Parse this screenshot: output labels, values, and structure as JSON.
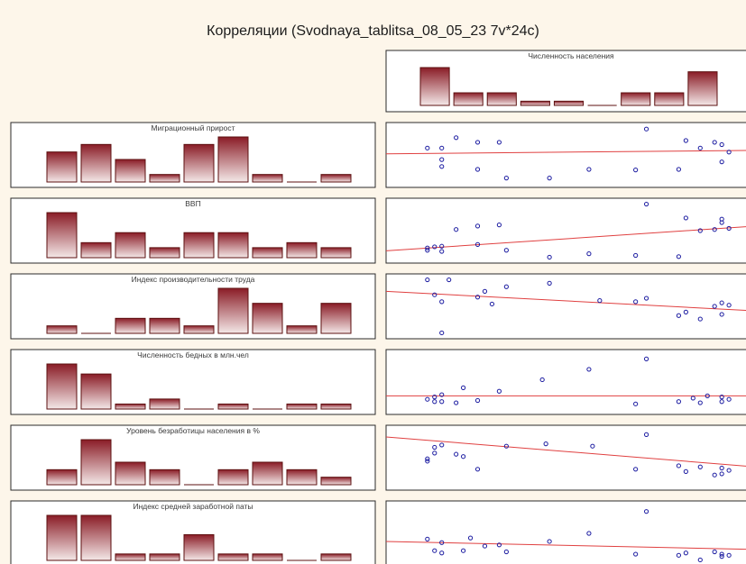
{
  "title": "Корреляции (Svodnaya_tablitsa_08_05_23 7v*24c)",
  "colors": {
    "background": "#fdf6ea",
    "bar_dark": "#8a1c26",
    "bar_light": "#f4e8e8",
    "point": "#1a1aa0",
    "fit_line": "#e04040"
  },
  "chart_data": {
    "type": "correlation-matrix",
    "column_variable": {
      "name": "Численность населения",
      "histogram": [
        9,
        3,
        3,
        1,
        1,
        0,
        3,
        3,
        8
      ]
    },
    "row_variables": [
      {
        "name": "Миграционный прирост",
        "histogram": [
          4,
          5,
          3,
          1,
          5,
          6,
          1,
          0,
          1
        ],
        "points": [
          [
            0.1,
            0.62
          ],
          [
            0.14,
            0.62
          ],
          [
            0.14,
            0.42
          ],
          [
            0.14,
            0.3
          ],
          [
            0.18,
            0.8
          ],
          [
            0.24,
            0.25
          ],
          [
            0.24,
            0.72
          ],
          [
            0.3,
            0.72
          ],
          [
            0.32,
            0.1
          ],
          [
            0.44,
            0.1
          ],
          [
            0.55,
            0.25
          ],
          [
            0.68,
            0.24
          ],
          [
            0.71,
            0.95
          ],
          [
            0.8,
            0.25
          ],
          [
            0.82,
            0.75
          ],
          [
            0.86,
            0.62
          ],
          [
            0.9,
            0.72
          ],
          [
            0.92,
            0.68
          ],
          [
            0.92,
            0.38
          ],
          [
            0.94,
            0.55
          ]
        ],
        "fit": [
          0.52,
          0.58
        ]
      },
      {
        "name": "ВВП",
        "histogram": [
          9,
          3,
          5,
          2,
          5,
          5,
          2,
          3,
          2
        ],
        "points": [
          [
            0.1,
            0.16
          ],
          [
            0.1,
            0.2
          ],
          [
            0.12,
            0.22
          ],
          [
            0.14,
            0.23
          ],
          [
            0.14,
            0.14
          ],
          [
            0.18,
            0.52
          ],
          [
            0.24,
            0.26
          ],
          [
            0.24,
            0.58
          ],
          [
            0.3,
            0.6
          ],
          [
            0.32,
            0.16
          ],
          [
            0.44,
            0.04
          ],
          [
            0.55,
            0.1
          ],
          [
            0.68,
            0.07
          ],
          [
            0.71,
            0.96
          ],
          [
            0.8,
            0.05
          ],
          [
            0.82,
            0.72
          ],
          [
            0.86,
            0.5
          ],
          [
            0.9,
            0.52
          ],
          [
            0.92,
            0.7
          ],
          [
            0.92,
            0.64
          ],
          [
            0.94,
            0.54
          ]
        ],
        "fit": [
          0.15,
          0.58
        ]
      },
      {
        "name": "Индекс производительности труда",
        "histogram": [
          1,
          0,
          2,
          2,
          1,
          6,
          4,
          1,
          4
        ],
        "points": [
          [
            0.1,
            0.96
          ],
          [
            0.12,
            0.7
          ],
          [
            0.14,
            0.58
          ],
          [
            0.14,
            0.04
          ],
          [
            0.16,
            0.96
          ],
          [
            0.24,
            0.66
          ],
          [
            0.26,
            0.76
          ],
          [
            0.28,
            0.54
          ],
          [
            0.32,
            0.84
          ],
          [
            0.44,
            0.9
          ],
          [
            0.58,
            0.6
          ],
          [
            0.68,
            0.58
          ],
          [
            0.71,
            0.64
          ],
          [
            0.8,
            0.34
          ],
          [
            0.82,
            0.4
          ],
          [
            0.86,
            0.28
          ],
          [
            0.9,
            0.5
          ],
          [
            0.92,
            0.56
          ],
          [
            0.92,
            0.36
          ],
          [
            0.94,
            0.52
          ]
        ],
        "fit": [
          0.76,
          0.42
        ]
      },
      {
        "name": "Численность бедных в млн.чел",
        "histogram": [
          9,
          7,
          1,
          2,
          0,
          1,
          0,
          1,
          1
        ],
        "points": [
          [
            0.1,
            0.2
          ],
          [
            0.12,
            0.16
          ],
          [
            0.12,
            0.24
          ],
          [
            0.14,
            0.28
          ],
          [
            0.14,
            0.16
          ],
          [
            0.18,
            0.14
          ],
          [
            0.2,
            0.4
          ],
          [
            0.24,
            0.18
          ],
          [
            0.3,
            0.34
          ],
          [
            0.42,
            0.54
          ],
          [
            0.55,
            0.72
          ],
          [
            0.68,
            0.12
          ],
          [
            0.71,
            0.9
          ],
          [
            0.8,
            0.16
          ],
          [
            0.84,
            0.22
          ],
          [
            0.86,
            0.14
          ],
          [
            0.88,
            0.26
          ],
          [
            0.92,
            0.16
          ],
          [
            0.92,
            0.24
          ],
          [
            0.94,
            0.2
          ]
        ],
        "fit": [
          0.26,
          0.26
        ]
      },
      {
        "name": "Уровень безработицы населения в %",
        "histogram": [
          2,
          6,
          3,
          2,
          0,
          2,
          3,
          2,
          1
        ],
        "points": [
          [
            0.1,
            0.48
          ],
          [
            0.1,
            0.44
          ],
          [
            0.12,
            0.68
          ],
          [
            0.12,
            0.58
          ],
          [
            0.14,
            0.72
          ],
          [
            0.18,
            0.56
          ],
          [
            0.2,
            0.52
          ],
          [
            0.24,
            0.3
          ],
          [
            0.32,
            0.7
          ],
          [
            0.43,
            0.74
          ],
          [
            0.56,
            0.7
          ],
          [
            0.68,
            0.3
          ],
          [
            0.71,
            0.9
          ],
          [
            0.8,
            0.36
          ],
          [
            0.82,
            0.26
          ],
          [
            0.86,
            0.34
          ],
          [
            0.9,
            0.2
          ],
          [
            0.92,
            0.22
          ],
          [
            0.92,
            0.32
          ],
          [
            0.94,
            0.28
          ]
        ],
        "fit": [
          0.86,
          0.34
        ]
      },
      {
        "name": "Индекс средней заработной паты",
        "histogram": [
          7,
          7,
          1,
          1,
          4,
          1,
          1,
          0,
          1
        ],
        "points": [
          [
            0.1,
            0.4
          ],
          [
            0.12,
            0.2
          ],
          [
            0.14,
            0.16
          ],
          [
            0.14,
            0.34
          ],
          [
            0.2,
            0.2
          ],
          [
            0.22,
            0.42
          ],
          [
            0.26,
            0.28
          ],
          [
            0.3,
            0.3
          ],
          [
            0.32,
            0.18
          ],
          [
            0.44,
            0.36
          ],
          [
            0.55,
            0.5
          ],
          [
            0.68,
            0.14
          ],
          [
            0.71,
            0.88
          ],
          [
            0.8,
            0.12
          ],
          [
            0.82,
            0.16
          ],
          [
            0.86,
            0.04
          ],
          [
            0.9,
            0.18
          ],
          [
            0.92,
            0.1
          ],
          [
            0.92,
            0.14
          ],
          [
            0.94,
            0.12
          ]
        ],
        "fit": [
          0.36,
          0.22
        ]
      }
    ]
  }
}
